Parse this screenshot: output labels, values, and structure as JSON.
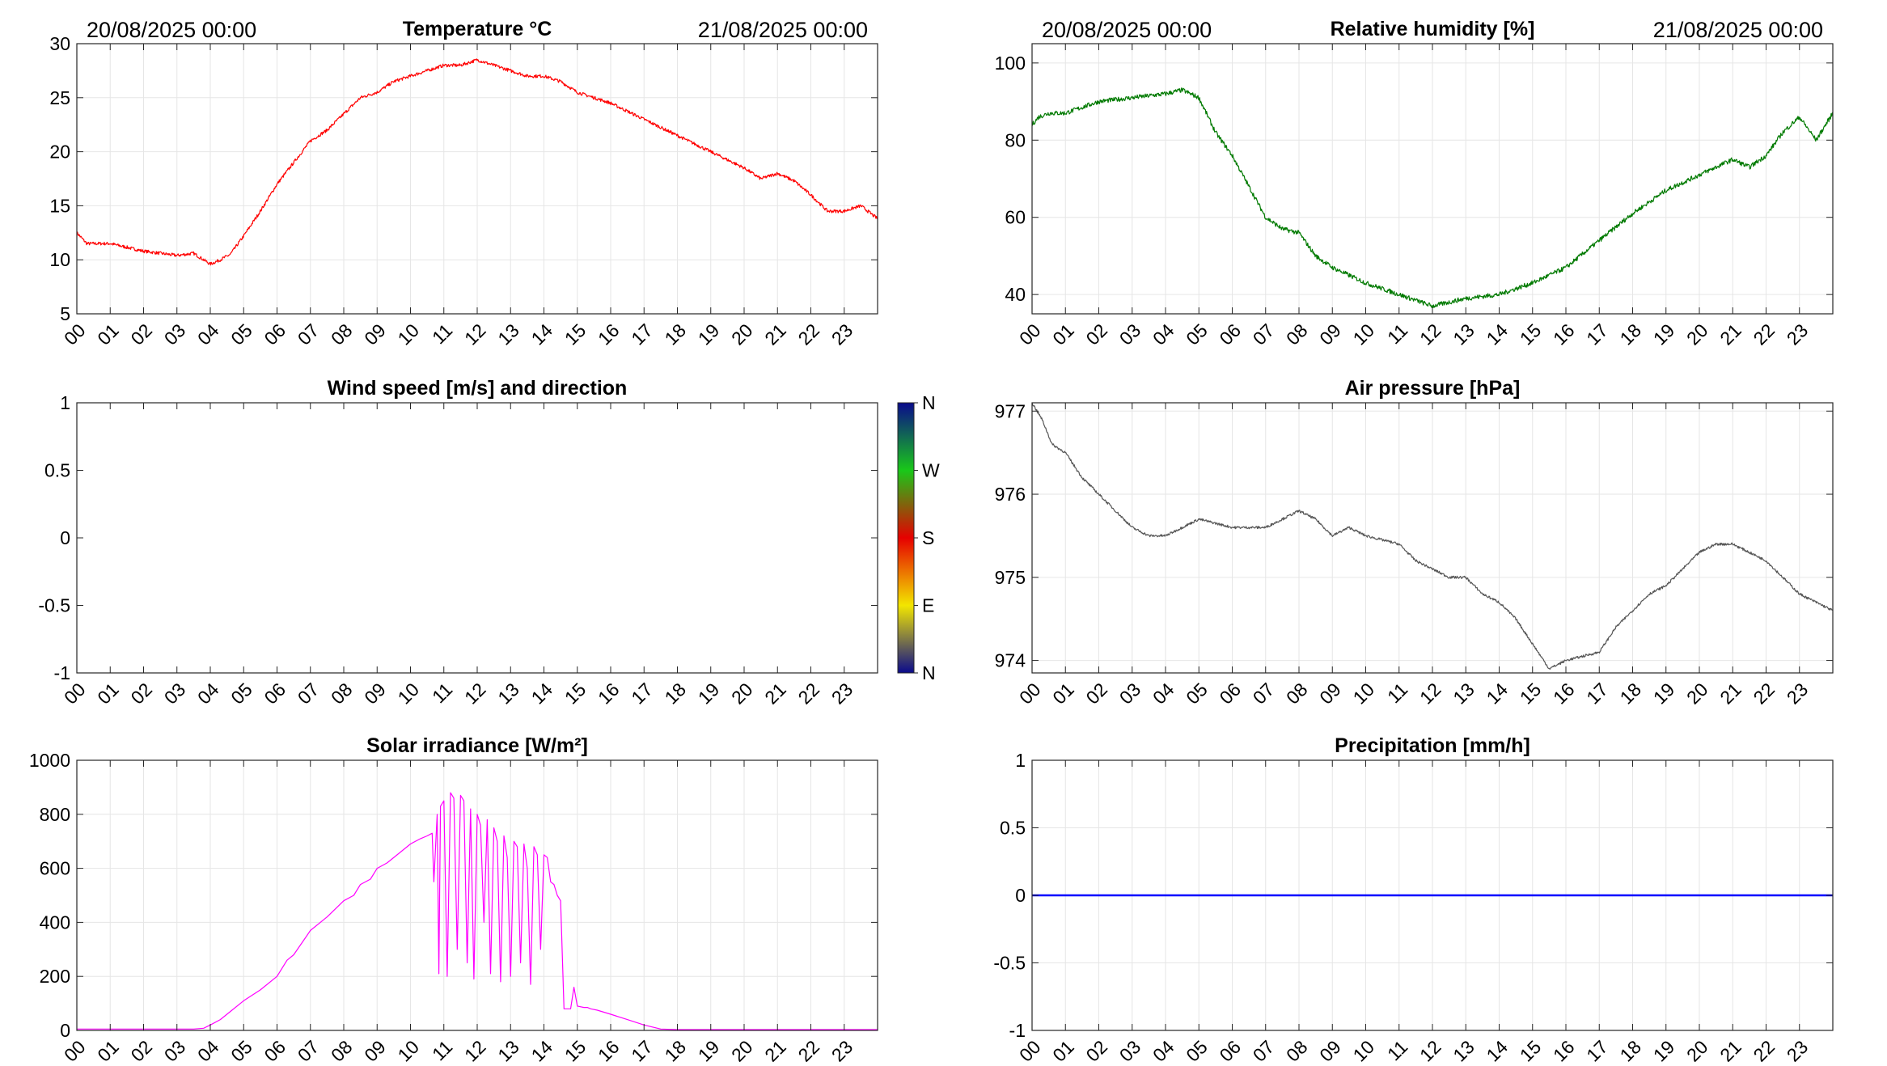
{
  "chart_data": [
    {
      "id": "temperature",
      "type": "line",
      "title": "Temperature °C",
      "header_left": "20/08/2025 00:00",
      "header_right": "21/08/2025 00:00",
      "x_tick_labels": [
        "00",
        "01",
        "02",
        "03",
        "04",
        "05",
        "06",
        "07",
        "08",
        "09",
        "10",
        "11",
        "12",
        "13",
        "14",
        "15",
        "16",
        "17",
        "18",
        "19",
        "20",
        "21",
        "22",
        "23"
      ],
      "ylim": [
        5,
        30
      ],
      "y_ticks": [
        5,
        10,
        15,
        20,
        25,
        30
      ],
      "y_tick_labels": [
        "5",
        "10",
        "15",
        "20",
        "25",
        "30"
      ],
      "grid": true,
      "series": [
        {
          "color": "#ff0000",
          "noise": 0.15,
          "x": [
            0,
            0.3,
            1,
            2,
            3,
            3.5,
            4,
            4.3,
            4.6,
            5,
            5.5,
            6,
            6.5,
            7,
            7.5,
            8,
            8.5,
            9,
            9.5,
            10,
            10.5,
            11,
            11.5,
            12,
            12.5,
            13,
            13.5,
            14,
            14.5,
            15,
            15.5,
            16,
            17,
            18,
            19,
            20,
            20.5,
            21,
            21.5,
            22,
            22.5,
            23,
            23.5,
            24
          ],
          "y": [
            12.5,
            11.5,
            11.5,
            10.8,
            10.4,
            10.6,
            9.6,
            10,
            10.5,
            12.2,
            14.5,
            17,
            19,
            21,
            22,
            23.5,
            25,
            25.5,
            26.5,
            27,
            27.5,
            28,
            28,
            28.5,
            28,
            27.5,
            27,
            27,
            26.5,
            25.5,
            25,
            24.5,
            23,
            21.5,
            20,
            18.5,
            17.5,
            18,
            17.3,
            16,
            14.5,
            14.5,
            15,
            13.8
          ]
        }
      ]
    },
    {
      "id": "humidity",
      "type": "line",
      "title": "Relative humidity [%]",
      "header_left": "20/08/2025 00:00",
      "header_right": "21/08/2025 00:00",
      "x_tick_labels": [
        "00",
        "01",
        "02",
        "03",
        "04",
        "05",
        "06",
        "07",
        "08",
        "09",
        "10",
        "11",
        "12",
        "13",
        "14",
        "15",
        "16",
        "17",
        "18",
        "19",
        "20",
        "21",
        "22",
        "23"
      ],
      "ylim": [
        35,
        105
      ],
      "y_ticks": [
        40,
        60,
        80,
        100
      ],
      "y_tick_labels": [
        "40",
        "60",
        "80",
        "100"
      ],
      "grid": true,
      "series": [
        {
          "color": "#007a00",
          "noise": 0.6,
          "x": [
            0,
            0.2,
            0.5,
            1,
            2,
            3,
            4,
            4.5,
            5,
            5.5,
            6,
            6.5,
            7,
            7.5,
            8,
            8.5,
            9,
            10,
            11,
            12,
            12.5,
            13,
            14,
            15,
            16,
            17,
            18,
            19,
            20,
            20.5,
            21,
            21.5,
            22,
            22.5,
            23,
            23.5,
            24
          ],
          "y": [
            84,
            86,
            87,
            87,
            90,
            91,
            92,
            93,
            91,
            82,
            76,
            68,
            60,
            57,
            56,
            50,
            47,
            43,
            40,
            37,
            38,
            39,
            40,
            43,
            47,
            54,
            61,
            67,
            71,
            73,
            75,
            73,
            76,
            82,
            86,
            80,
            87
          ]
        }
      ]
    },
    {
      "id": "wind",
      "type": "line",
      "title": "Wind speed [m/s] and direction",
      "x_tick_labels": [
        "00",
        "01",
        "02",
        "03",
        "04",
        "05",
        "06",
        "07",
        "08",
        "09",
        "10",
        "11",
        "12",
        "13",
        "14",
        "15",
        "16",
        "17",
        "18",
        "19",
        "20",
        "21",
        "22",
        "23"
      ],
      "ylim": [
        -1,
        1
      ],
      "y_ticks": [
        -1,
        -0.5,
        0,
        0.5,
        1
      ],
      "y_tick_labels": [
        "-1",
        "-0.5",
        "0",
        "0.5",
        "1"
      ],
      "grid": false,
      "series": [],
      "colorbar_labels": [
        "N",
        "W",
        "S",
        "E",
        "N"
      ]
    },
    {
      "id": "pressure",
      "type": "line",
      "title": "Air pressure [hPa]",
      "x_tick_labels": [
        "00",
        "01",
        "02",
        "03",
        "04",
        "05",
        "06",
        "07",
        "08",
        "09",
        "10",
        "11",
        "12",
        "13",
        "14",
        "15",
        "16",
        "17",
        "18",
        "19",
        "20",
        "21",
        "22",
        "23"
      ],
      "ylim": [
        973.85,
        977.1
      ],
      "y_ticks": [
        974,
        975,
        976,
        977
      ],
      "y_tick_labels": [
        "974",
        "975",
        "976",
        "977"
      ],
      "grid": true,
      "series": [
        {
          "color": "#555555",
          "noise": 0.015,
          "x": [
            0,
            0.3,
            0.6,
            1,
            1.5,
            2,
            2.5,
            3,
            3.5,
            4,
            4.5,
            5,
            6,
            7,
            7.5,
            8,
            8.5,
            9,
            9.5,
            10,
            11,
            11.5,
            12,
            12.5,
            13,
            13.5,
            14,
            14.5,
            15,
            15.5,
            16,
            17,
            17.5,
            18,
            18.5,
            19,
            19.5,
            20,
            20.5,
            21,
            21.5,
            22,
            22.5,
            23,
            23.5,
            24
          ],
          "y": [
            977.1,
            976.9,
            976.6,
            976.5,
            976.2,
            976,
            975.8,
            975.6,
            975.5,
            975.5,
            975.6,
            975.7,
            975.6,
            975.6,
            975.7,
            975.8,
            975.7,
            975.5,
            975.6,
            975.5,
            975.4,
            975.2,
            975.1,
            975,
            975,
            974.8,
            974.7,
            974.5,
            974.2,
            973.9,
            974,
            974.1,
            974.4,
            974.6,
            974.8,
            974.9,
            975.1,
            975.3,
            975.4,
            975.4,
            975.3,
            975.2,
            975,
            974.8,
            974.7,
            974.6
          ]
        }
      ]
    },
    {
      "id": "solar",
      "type": "line",
      "title": "Solar irradiance [W/m²]",
      "x_tick_labels": [
        "00",
        "01",
        "02",
        "03",
        "04",
        "05",
        "06",
        "07",
        "08",
        "09",
        "10",
        "11",
        "12",
        "13",
        "14",
        "15",
        "16",
        "17",
        "18",
        "19",
        "20",
        "21",
        "22",
        "23"
      ],
      "ylim": [
        0,
        1000
      ],
      "y_ticks": [
        0,
        200,
        400,
        600,
        800,
        1000
      ],
      "y_tick_labels": [
        "0",
        "200",
        "400",
        "600",
        "800",
        "1000"
      ],
      "grid": true,
      "series": [
        {
          "color": "#ff00ff",
          "noise": 0,
          "x": [
            0,
            3.5,
            3.8,
            4,
            4.3,
            4.6,
            5,
            5.5,
            6,
            6.3,
            6.5,
            7,
            7.5,
            8,
            8.3,
            8.5,
            8.8,
            9,
            9.3,
            9.6,
            10,
            10.3,
            10.5,
            10.65,
            10.7,
            10.8,
            10.85,
            10.9,
            11,
            11.1,
            11.2,
            11.3,
            11.4,
            11.5,
            11.6,
            11.7,
            11.8,
            11.9,
            12,
            12.1,
            12.2,
            12.3,
            12.4,
            12.5,
            12.6,
            12.7,
            12.8,
            12.9,
            13,
            13.1,
            13.2,
            13.3,
            13.4,
            13.5,
            13.6,
            13.7,
            13.8,
            13.9,
            14,
            14.1,
            14.2,
            14.3,
            14.4,
            14.5,
            14.6,
            14.8,
            14.9,
            15,
            15.2,
            15.3,
            15.4,
            15.6,
            16,
            16.5,
            17,
            17.5,
            18,
            18.5,
            19,
            24
          ],
          "y": [
            5,
            5,
            8,
            20,
            40,
            70,
            110,
            150,
            200,
            260,
            280,
            370,
            420,
            480,
            500,
            540,
            560,
            600,
            620,
            650,
            690,
            710,
            720,
            730,
            550,
            800,
            210,
            830,
            850,
            200,
            880,
            860,
            300,
            870,
            850,
            250,
            820,
            190,
            800,
            760,
            400,
            780,
            210,
            750,
            700,
            180,
            720,
            640,
            200,
            700,
            680,
            250,
            690,
            600,
            170,
            680,
            650,
            300,
            650,
            640,
            550,
            540,
            500,
            480,
            80,
            80,
            160,
            90,
            85,
            85,
            80,
            75,
            60,
            40,
            20,
            5,
            3,
            3,
            3,
            3
          ]
        }
      ]
    },
    {
      "id": "precipitation",
      "type": "line",
      "title": "Precipitation [mm/h]",
      "x_tick_labels": [
        "00",
        "01",
        "02",
        "03",
        "04",
        "05",
        "06",
        "07",
        "08",
        "09",
        "10",
        "11",
        "12",
        "13",
        "14",
        "15",
        "16",
        "17",
        "18",
        "19",
        "20",
        "21",
        "22",
        "23"
      ],
      "ylim": [
        -1,
        1
      ],
      "y_ticks": [
        -1,
        -0.5,
        0,
        0.5,
        1
      ],
      "y_tick_labels": [
        "-1",
        "-0.5",
        "0",
        "0.5",
        "1"
      ],
      "grid": true,
      "series": [
        {
          "color": "#0000ff",
          "noise": 0,
          "width": 2.5,
          "x": [
            0,
            24
          ],
          "y": [
            0,
            0
          ]
        }
      ]
    }
  ]
}
